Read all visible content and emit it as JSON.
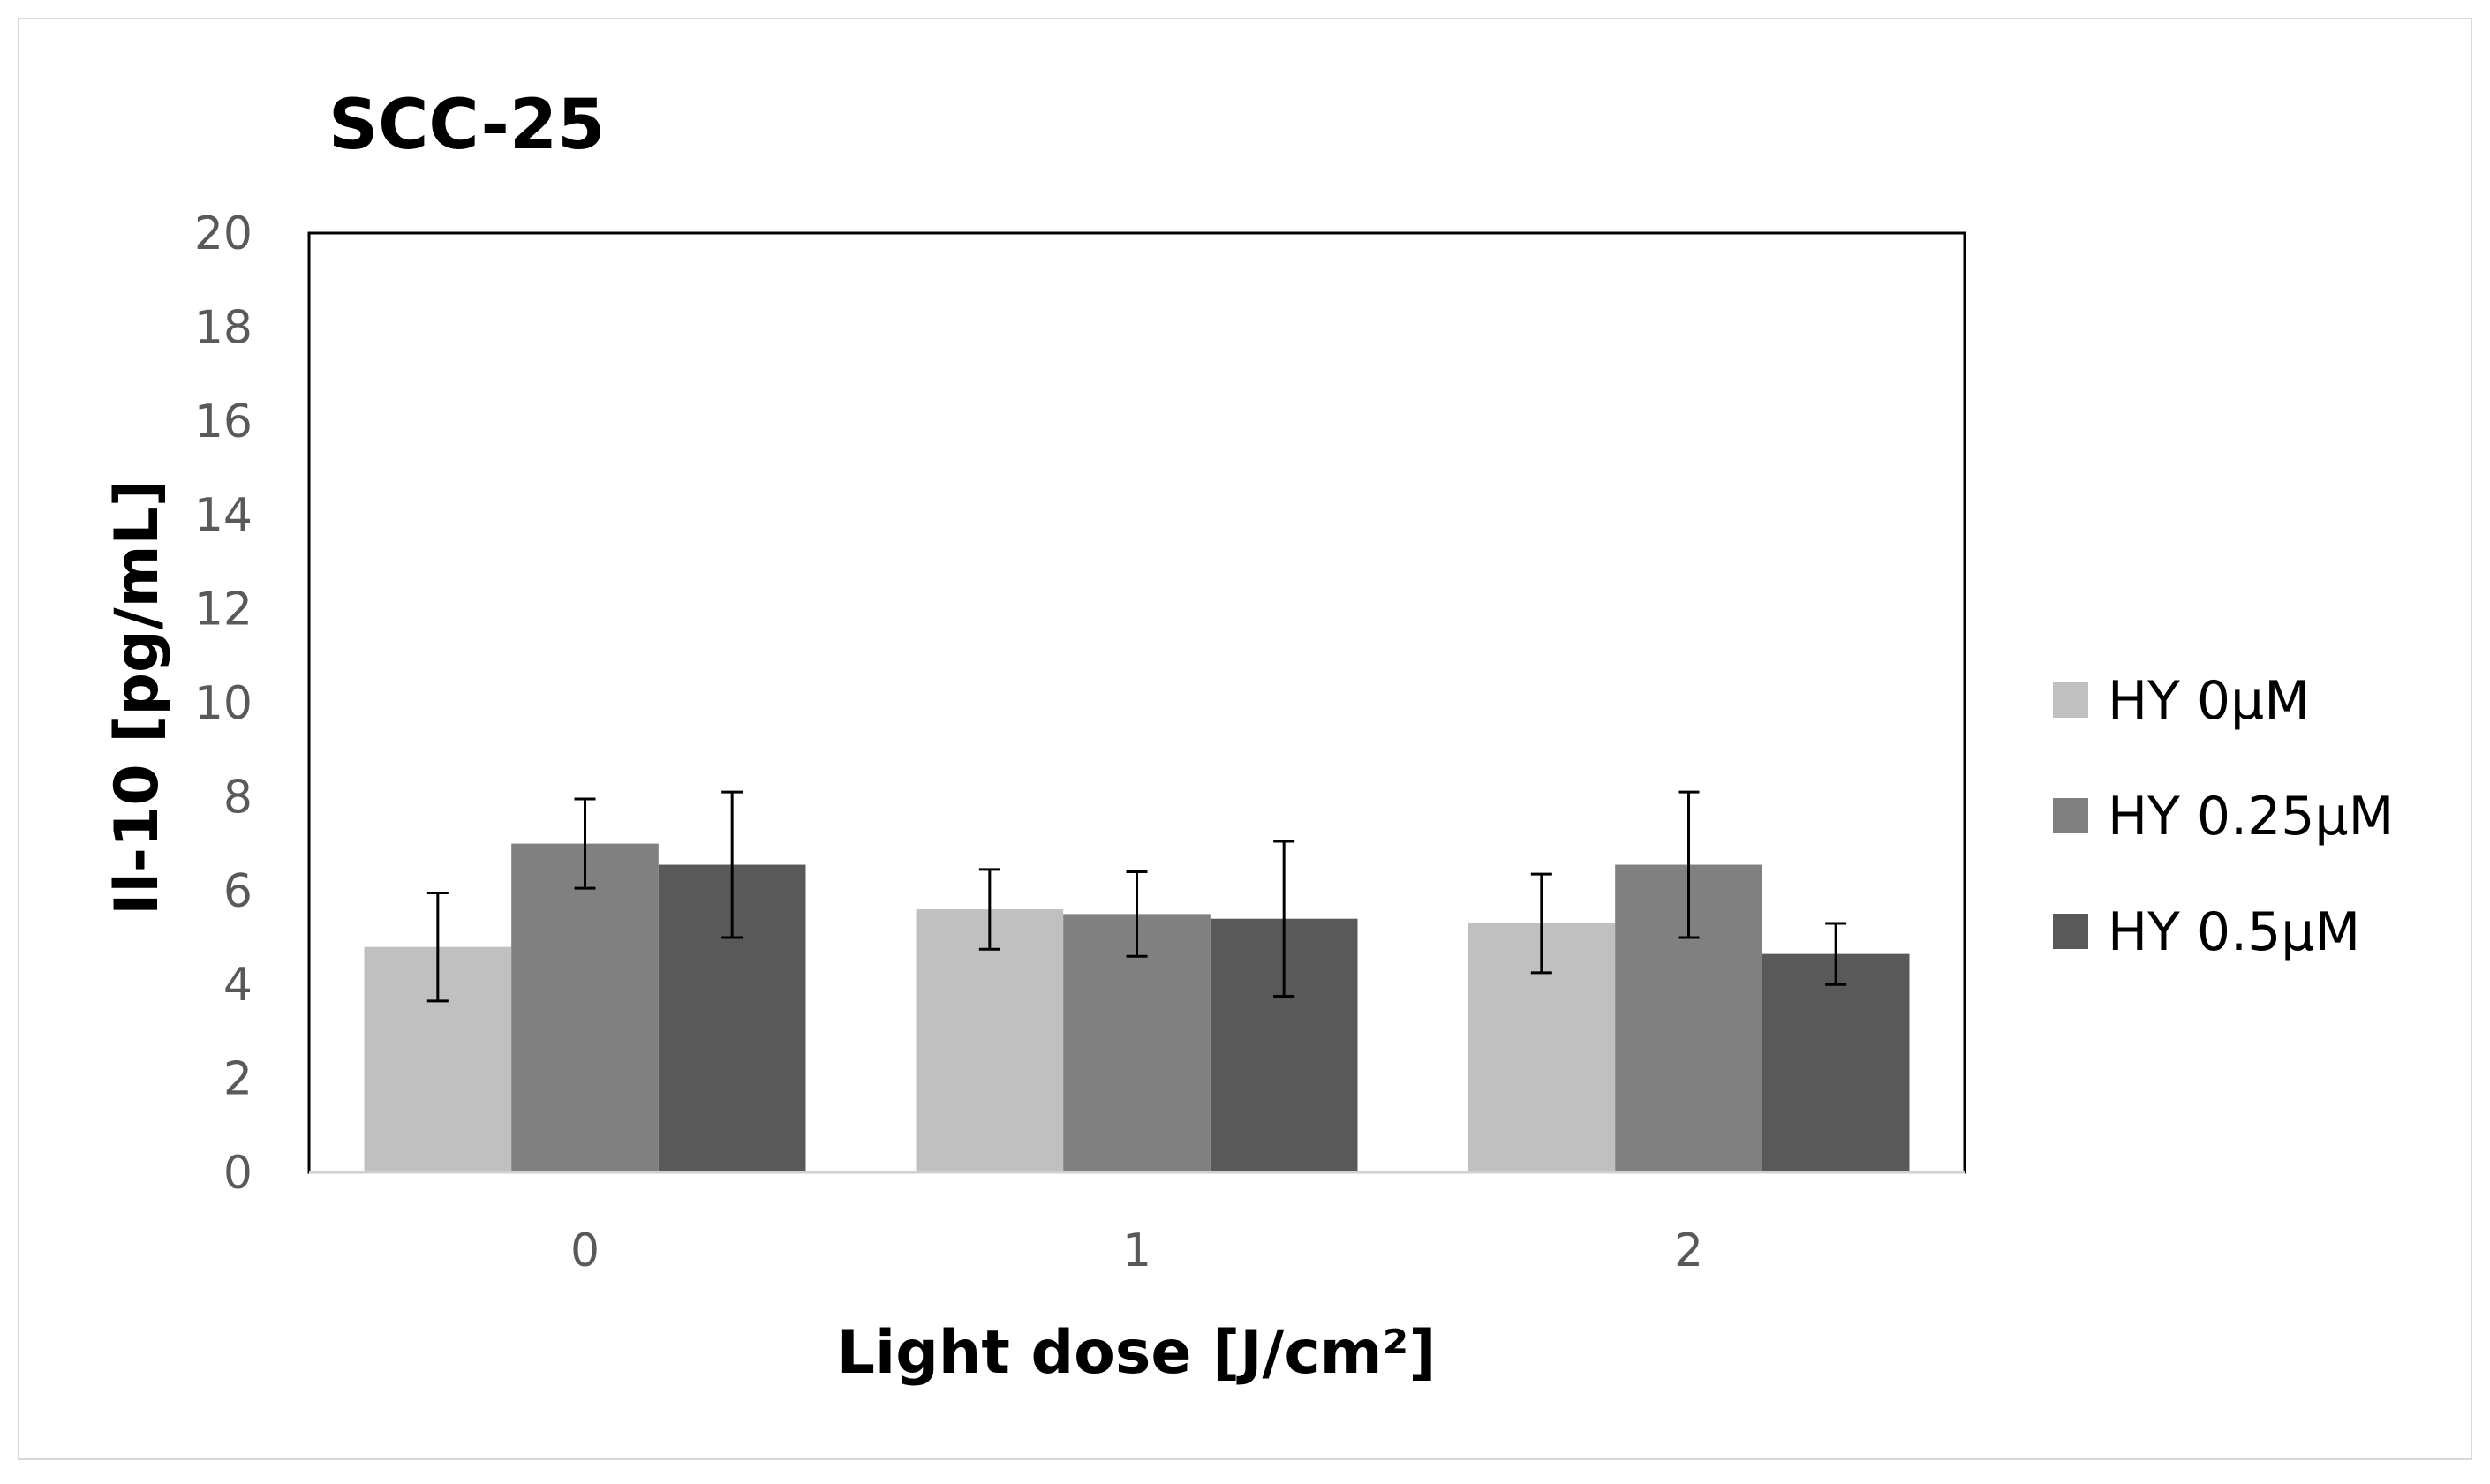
{
  "chart_data": {
    "type": "bar",
    "title": "SCC-25",
    "xlabel": "Light dose [J/cm²]",
    "ylabel": "Il-10  [pg/mL]",
    "ylim": [
      0,
      20
    ],
    "yticks": [
      0,
      2,
      4,
      6,
      8,
      10,
      12,
      14,
      16,
      18,
      20
    ],
    "categories": [
      "0",
      "1",
      "2"
    ],
    "grid": false,
    "legend_position": "right",
    "series": [
      {
        "name": "HY 0µM",
        "color": "#c0c0c0",
        "values": [
          4.8,
          5.6,
          5.3
        ],
        "errors": [
          1.15,
          0.85,
          1.05
        ]
      },
      {
        "name": "HY 0.25µM",
        "color": "#808080",
        "values": [
          7.0,
          5.5,
          6.55
        ],
        "errors": [
          0.95,
          0.9,
          1.55
        ]
      },
      {
        "name": "HY 0.5µM",
        "color": "#595959",
        "values": [
          6.55,
          5.4,
          4.65
        ],
        "errors": [
          1.55,
          1.65,
          0.65
        ]
      }
    ]
  }
}
